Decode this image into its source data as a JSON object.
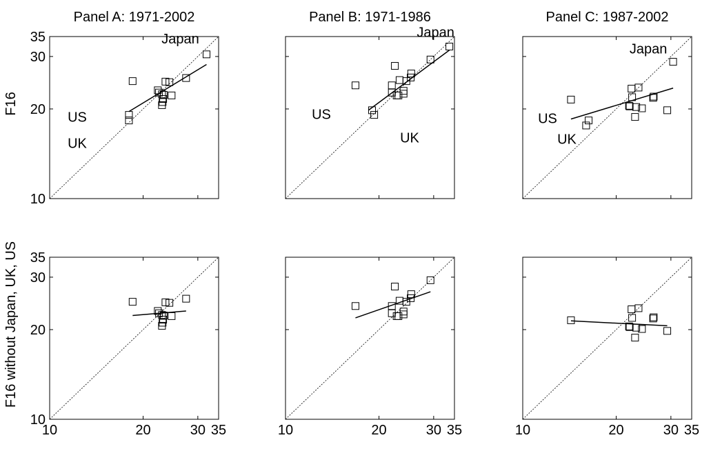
{
  "chart_data": [
    {
      "type": "scatter",
      "title": "Panel A: 1971-2002",
      "ylabel": "F16",
      "xlabel": "",
      "xlim": [
        10,
        35
      ],
      "ylim": [
        10,
        35
      ],
      "scale": "log",
      "ticks": [
        10,
        20,
        30,
        35
      ],
      "points": [
        [
          18.0,
          18.3
        ],
        [
          18.0,
          19.1
        ],
        [
          18.5,
          24.8
        ],
        [
          22.3,
          23.1
        ],
        [
          22.5,
          22.7
        ],
        [
          23.0,
          22.4
        ],
        [
          23.0,
          20.6
        ],
        [
          23.1,
          21.1
        ],
        [
          23.2,
          21.6
        ],
        [
          23.3,
          22.3
        ],
        [
          23.6,
          24.7
        ],
        [
          24.3,
          24.6
        ],
        [
          24.7,
          22.2
        ],
        [
          27.5,
          25.4
        ],
        [
          32.0,
          30.5
        ]
      ],
      "fit": [
        [
          18.0,
          19.6
        ],
        [
          32.0,
          28.2
        ]
      ],
      "annotations": [
        "Japan",
        "US",
        "UK"
      ]
    },
    {
      "type": "scatter",
      "title": "Panel B: 1971-1986",
      "ylabel": "",
      "xlabel": "",
      "xlim": [
        10,
        35
      ],
      "ylim": [
        10,
        35
      ],
      "scale": "log",
      "ticks": [
        10,
        20,
        30,
        35
      ],
      "points": [
        [
          16.8,
          24.0
        ],
        [
          19.0,
          19.8
        ],
        [
          19.3,
          19.1
        ],
        [
          22.0,
          22.7
        ],
        [
          22.0,
          24.0
        ],
        [
          22.5,
          27.9
        ],
        [
          22.8,
          22.2
        ],
        [
          23.1,
          22.2
        ],
        [
          23.3,
          25.0
        ],
        [
          24.0,
          22.5
        ],
        [
          24.0,
          23.0
        ],
        [
          24.5,
          24.8
        ],
        [
          25.3,
          25.5
        ],
        [
          25.4,
          26.3
        ],
        [
          29.3,
          29.3
        ],
        [
          33.7,
          32.4
        ]
      ],
      "fit": [
        [
          18.5,
          19.8
        ],
        [
          33.7,
          31.5
        ]
      ],
      "annotations": [
        "Japan",
        "US",
        "UK"
      ]
    },
    {
      "type": "scatter",
      "title": "Panel C: 1987-2002",
      "ylabel": "",
      "xlabel": "",
      "xlim": [
        10,
        35
      ],
      "ylim": [
        10,
        35
      ],
      "scale": "log",
      "ticks": [
        10,
        20,
        30,
        35
      ],
      "points": [
        [
          14.3,
          21.5
        ],
        [
          16.0,
          17.6
        ],
        [
          16.3,
          18.3
        ],
        [
          22.0,
          20.5
        ],
        [
          22.1,
          20.4
        ],
        [
          22.4,
          23.4
        ],
        [
          22.5,
          21.9
        ],
        [
          23.0,
          18.8
        ],
        [
          23.2,
          20.3
        ],
        [
          23.6,
          23.6
        ],
        [
          24.2,
          20.1
        ],
        [
          26.3,
          21.8
        ],
        [
          26.4,
          22.0
        ],
        [
          29.2,
          19.8
        ],
        [
          30.5,
          28.8
        ]
      ],
      "fit": [
        [
          14.3,
          18.5
        ],
        [
          30.5,
          23.5
        ]
      ],
      "annotations": [
        "Japan",
        "US",
        "UK"
      ]
    },
    {
      "type": "scatter",
      "title": "",
      "ylabel": "F16 without Japan, UK, US",
      "xlabel": "",
      "xlim": [
        10,
        35
      ],
      "ylim": [
        10,
        35
      ],
      "scale": "log",
      "ticks": [
        10,
        20,
        30,
        35
      ],
      "points": [
        [
          18.5,
          24.8
        ],
        [
          22.3,
          23.1
        ],
        [
          22.5,
          22.7
        ],
        [
          23.0,
          22.4
        ],
        [
          23.0,
          20.6
        ],
        [
          23.1,
          21.1
        ],
        [
          23.2,
          21.6
        ],
        [
          23.3,
          22.3
        ],
        [
          23.6,
          24.7
        ],
        [
          24.3,
          24.6
        ],
        [
          24.7,
          22.2
        ],
        [
          27.5,
          25.4
        ]
      ],
      "fit": [
        [
          18.5,
          22.3
        ],
        [
          27.5,
          23.1
        ]
      ],
      "annotations": []
    },
    {
      "type": "scatter",
      "title": "",
      "ylabel": "",
      "xlabel": "",
      "xlim": [
        10,
        35
      ],
      "ylim": [
        10,
        35
      ],
      "scale": "log",
      "ticks": [
        10,
        20,
        30,
        35
      ],
      "points": [
        [
          16.8,
          24.0
        ],
        [
          22.0,
          22.7
        ],
        [
          22.0,
          24.0
        ],
        [
          22.5,
          27.9
        ],
        [
          22.8,
          22.2
        ],
        [
          23.1,
          22.2
        ],
        [
          23.3,
          25.0
        ],
        [
          24.0,
          22.5
        ],
        [
          24.0,
          23.0
        ],
        [
          24.5,
          24.8
        ],
        [
          25.3,
          25.5
        ],
        [
          25.4,
          26.3
        ],
        [
          29.3,
          29.3
        ]
      ],
      "fit": [
        [
          16.8,
          21.9
        ],
        [
          29.3,
          26.8
        ]
      ],
      "annotations": []
    },
    {
      "type": "scatter",
      "title": "",
      "ylabel": "",
      "xlabel": "",
      "xlim": [
        10,
        35
      ],
      "ylim": [
        10,
        35
      ],
      "scale": "log",
      "ticks": [
        10,
        20,
        30,
        35
      ],
      "points": [
        [
          14.3,
          21.5
        ],
        [
          22.0,
          20.5
        ],
        [
          22.1,
          20.4
        ],
        [
          22.4,
          23.4
        ],
        [
          22.5,
          21.9
        ],
        [
          23.0,
          18.8
        ],
        [
          23.2,
          20.3
        ],
        [
          23.6,
          23.6
        ],
        [
          24.2,
          20.1
        ],
        [
          26.3,
          21.8
        ],
        [
          26.4,
          22.0
        ],
        [
          29.2,
          19.8
        ]
      ],
      "fit": [
        [
          14.3,
          21.4
        ],
        [
          29.2,
          20.6
        ]
      ],
      "annotations": []
    }
  ]
}
